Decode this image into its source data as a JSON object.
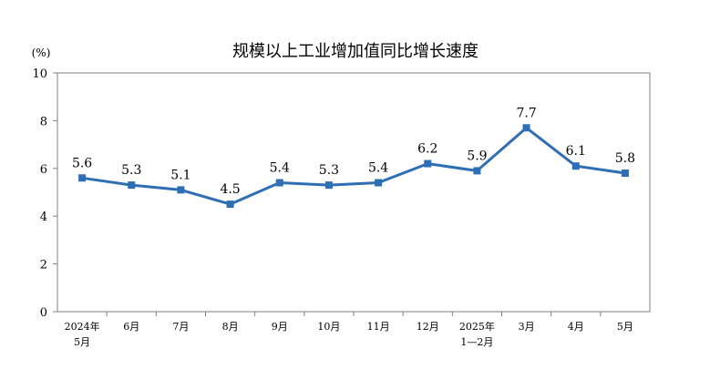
{
  "chart_data": {
    "type": "line",
    "title": "规模以上工业增加值同比增长速度",
    "unit": "(%)",
    "categories": [
      [
        "2024年",
        "5月"
      ],
      [
        "6月"
      ],
      [
        "7月"
      ],
      [
        "8月"
      ],
      [
        "9月"
      ],
      [
        "10月"
      ],
      [
        "11月"
      ],
      [
        "12月"
      ],
      [
        "2025年",
        "1—2月"
      ],
      [
        "3月"
      ],
      [
        "4月"
      ],
      [
        "5月"
      ]
    ],
    "series": [
      {
        "values": [
          5.6,
          5.3,
          5.1,
          4.5,
          5.4,
          5.3,
          5.4,
          6.2,
          5.9,
          7.7,
          6.1,
          5.8
        ],
        "data_labels": [
          "5.6",
          "5.3",
          "5.1",
          "4.5",
          "5.4",
          "5.3",
          "5.4",
          "6.2",
          "5.9",
          "7.7",
          "6.1",
          "5.8"
        ],
        "color": "#2e6eb4"
      }
    ],
    "ylim": [
      0,
      10
    ],
    "yticks": [
      0,
      2,
      4,
      6,
      8,
      10
    ],
    "ytick_labels": [
      "0",
      "2",
      "4",
      "6",
      "8",
      "10"
    ],
    "grid": false,
    "legend": "none",
    "colors": {
      "line": "#2e6eb4",
      "axis": "#808080"
    }
  }
}
